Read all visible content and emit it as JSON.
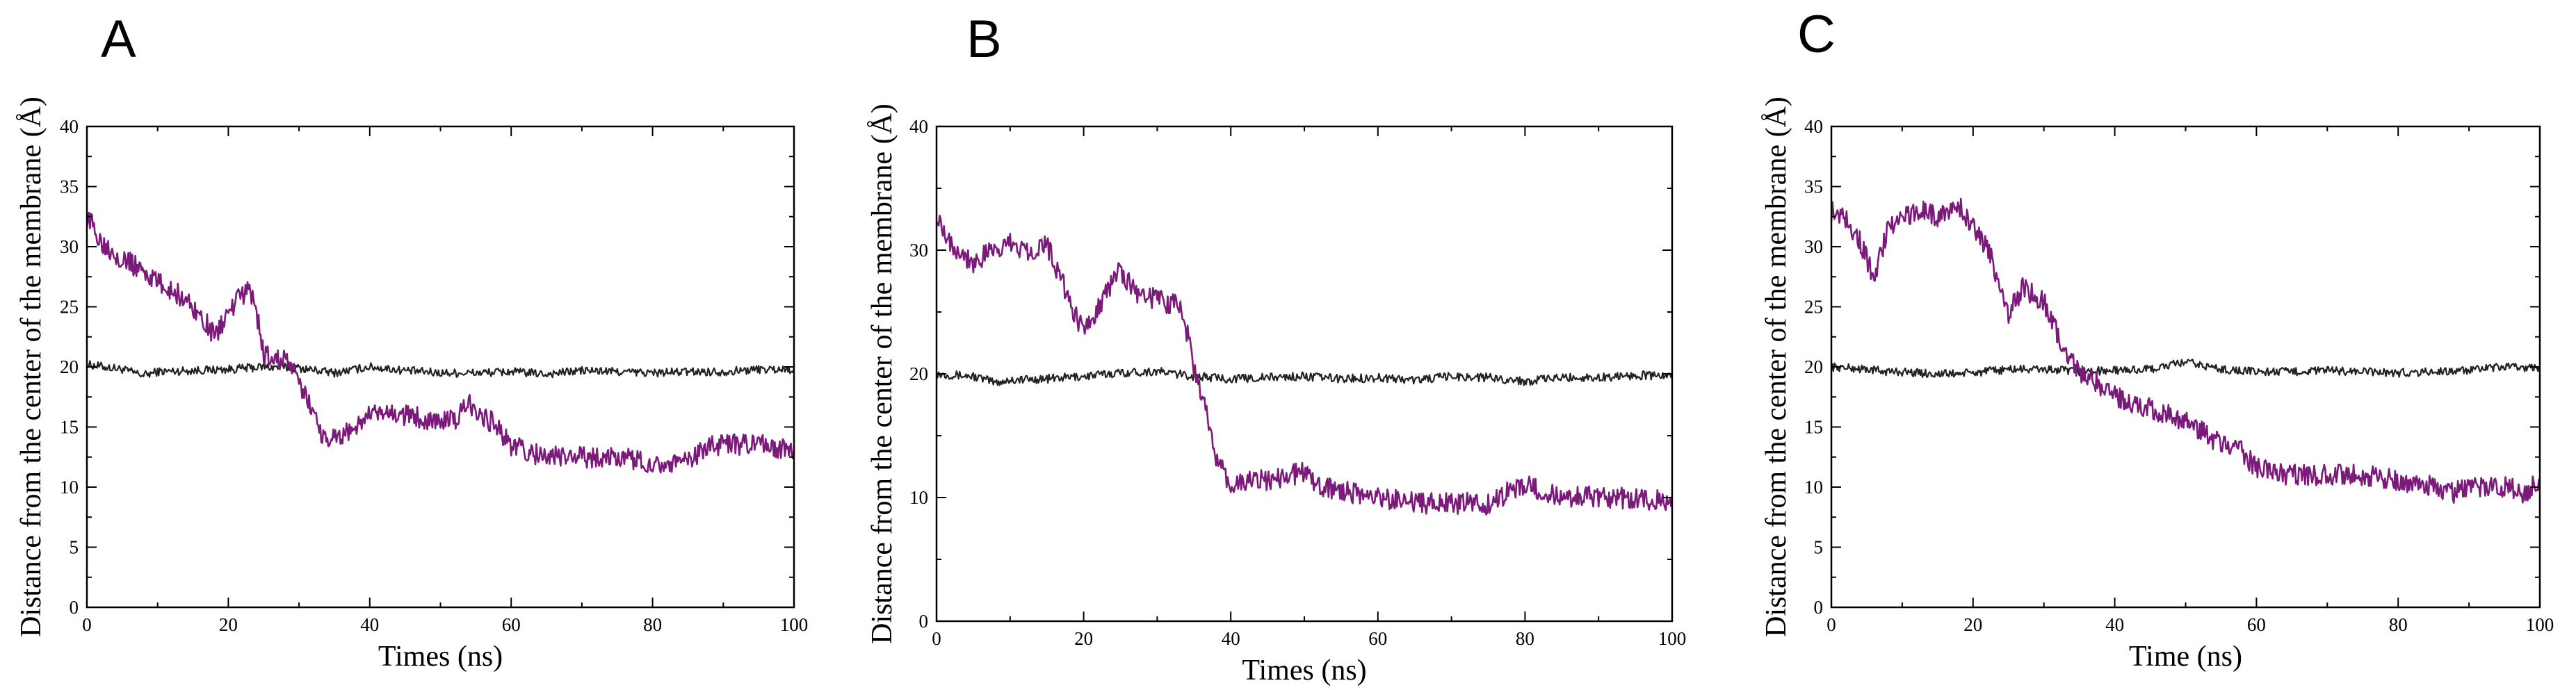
{
  "chart_data": [
    {
      "type": "line",
      "panel_label": "A",
      "xlabel": "Times (ns)",
      "ylabel": "Distance from the center of the membrane (Å)",
      "xlim": [
        0,
        100
      ],
      "ylim": [
        0,
        40
      ],
      "xticks": [
        0,
        20,
        40,
        60,
        80,
        100
      ],
      "yticks": [
        0,
        5,
        10,
        15,
        20,
        25,
        30,
        35,
        40
      ],
      "grid": false,
      "series": [
        {
          "color": "#222222",
          "x": [
            0,
            5,
            8,
            10,
            15,
            20,
            25,
            30,
            35,
            40,
            45,
            50,
            55,
            60,
            65,
            70,
            75,
            80,
            85,
            90,
            95,
            100
          ],
          "y": [
            20.2,
            19.8,
            19.3,
            19.6,
            19.7,
            19.8,
            20.0,
            19.9,
            19.5,
            20.0,
            19.7,
            19.5,
            19.5,
            19.6,
            19.4,
            19.7,
            19.6,
            19.5,
            19.6,
            19.6,
            19.8,
            19.8
          ]
        },
        {
          "color": "#7B1A7B",
          "x": [
            0,
            2,
            5,
            8,
            10,
            13,
            15,
            17,
            18,
            20,
            22,
            23,
            24,
            25,
            27,
            28,
            30,
            32,
            33,
            35,
            38,
            40,
            45,
            50,
            52,
            54,
            55,
            58,
            60,
            62,
            65,
            70,
            75,
            80,
            85,
            88,
            90,
            95,
            100
          ],
          "y": [
            32.5,
            30.5,
            29.0,
            28.0,
            27.0,
            26.0,
            25.0,
            23.5,
            22.5,
            24.5,
            26.0,
            26.5,
            24.5,
            21.0,
            20.5,
            21.0,
            18.5,
            16.5,
            14.5,
            14.0,
            15.0,
            16.0,
            16.0,
            15.5,
            15.5,
            17.0,
            16.5,
            15.0,
            13.5,
            13.0,
            12.5,
            12.5,
            12.5,
            12.0,
            12.0,
            13.5,
            13.5,
            13.5,
            13.0
          ]
        }
      ]
    },
    {
      "type": "line",
      "panel_label": "B",
      "xlabel": "Times (ns)",
      "ylabel": "Distance from the center of the membrane (Å)",
      "xlim": [
        0,
        100
      ],
      "ylim": [
        0,
        40
      ],
      "xticks": [
        0,
        20,
        40,
        60,
        80,
        100
      ],
      "yticks": [
        0,
        10,
        20,
        30,
        40
      ],
      "grid": false,
      "series": [
        {
          "color": "#222222",
          "x": [
            0,
            5,
            8,
            10,
            15,
            20,
            25,
            30,
            35,
            40,
            45,
            50,
            55,
            60,
            65,
            70,
            75,
            80,
            85,
            90,
            95,
            100
          ],
          "y": [
            20.0,
            19.8,
            19.3,
            19.5,
            19.6,
            19.8,
            20.1,
            20.2,
            19.8,
            19.6,
            19.7,
            19.8,
            19.6,
            19.7,
            19.5,
            19.8,
            19.7,
            19.4,
            19.7,
            19.7,
            19.9,
            19.8
          ]
        },
        {
          "color": "#7B1A7B",
          "x": [
            0,
            2,
            5,
            8,
            10,
            13,
            15,
            17,
            19,
            20,
            22,
            25,
            27,
            30,
            33,
            34,
            35,
            37,
            38,
            40,
            45,
            50,
            52,
            55,
            60,
            65,
            70,
            75,
            78,
            80,
            82,
            85,
            90,
            95,
            100
          ],
          "y": [
            33.0,
            30.5,
            29.0,
            30.0,
            30.5,
            30.0,
            30.5,
            27.5,
            24.5,
            23.5,
            25.5,
            28.5,
            26.5,
            26.0,
            25.5,
            23.5,
            20.5,
            16.0,
            13.0,
            11.0,
            11.5,
            12.0,
            11.0,
            10.5,
            10.0,
            9.5,
            9.5,
            9.5,
            10.5,
            11.0,
            10.5,
            10.0,
            10.0,
            10.0,
            9.5
          ]
        }
      ]
    },
    {
      "type": "line",
      "panel_label": "C",
      "xlabel": "Time (ns)",
      "ylabel": "Distance from the center of the membrane (Å)",
      "xlim": [
        0,
        100
      ],
      "ylim": [
        0,
        40
      ],
      "xticks": [
        0,
        20,
        40,
        60,
        80,
        100
      ],
      "yticks": [
        0,
        5,
        10,
        15,
        20,
        25,
        30,
        35,
        40
      ],
      "grid": false,
      "series": [
        {
          "color": "#222222",
          "x": [
            0,
            5,
            8,
            10,
            15,
            20,
            25,
            30,
            35,
            40,
            45,
            50,
            55,
            60,
            65,
            70,
            75,
            80,
            85,
            90,
            95,
            100
          ],
          "y": [
            20.0,
            19.8,
            19.6,
            19.6,
            19.4,
            19.5,
            19.8,
            19.8,
            19.6,
            19.7,
            19.8,
            20.4,
            19.8,
            19.6,
            19.6,
            19.7,
            19.6,
            19.5,
            19.6,
            19.7,
            20.0,
            19.9
          ]
        },
        {
          "color": "#7B1A7B",
          "x": [
            0,
            2,
            4,
            6,
            8,
            10,
            13,
            15,
            18,
            20,
            22,
            24,
            25,
            27,
            30,
            32,
            35,
            38,
            40,
            45,
            50,
            55,
            58,
            60,
            65,
            70,
            75,
            80,
            85,
            88,
            90,
            95,
            98,
            100
          ],
          "y": [
            33.0,
            32.5,
            30.5,
            27.5,
            31.5,
            32.5,
            33.0,
            32.5,
            33.5,
            31.5,
            30.0,
            26.5,
            24.5,
            26.5,
            25.5,
            22.5,
            19.5,
            18.5,
            17.5,
            16.5,
            15.5,
            13.5,
            13.0,
            11.5,
            11.0,
            11.0,
            11.0,
            10.5,
            10.0,
            9.5,
            10.0,
            10.0,
            9.5,
            10.5
          ]
        }
      ]
    }
  ]
}
